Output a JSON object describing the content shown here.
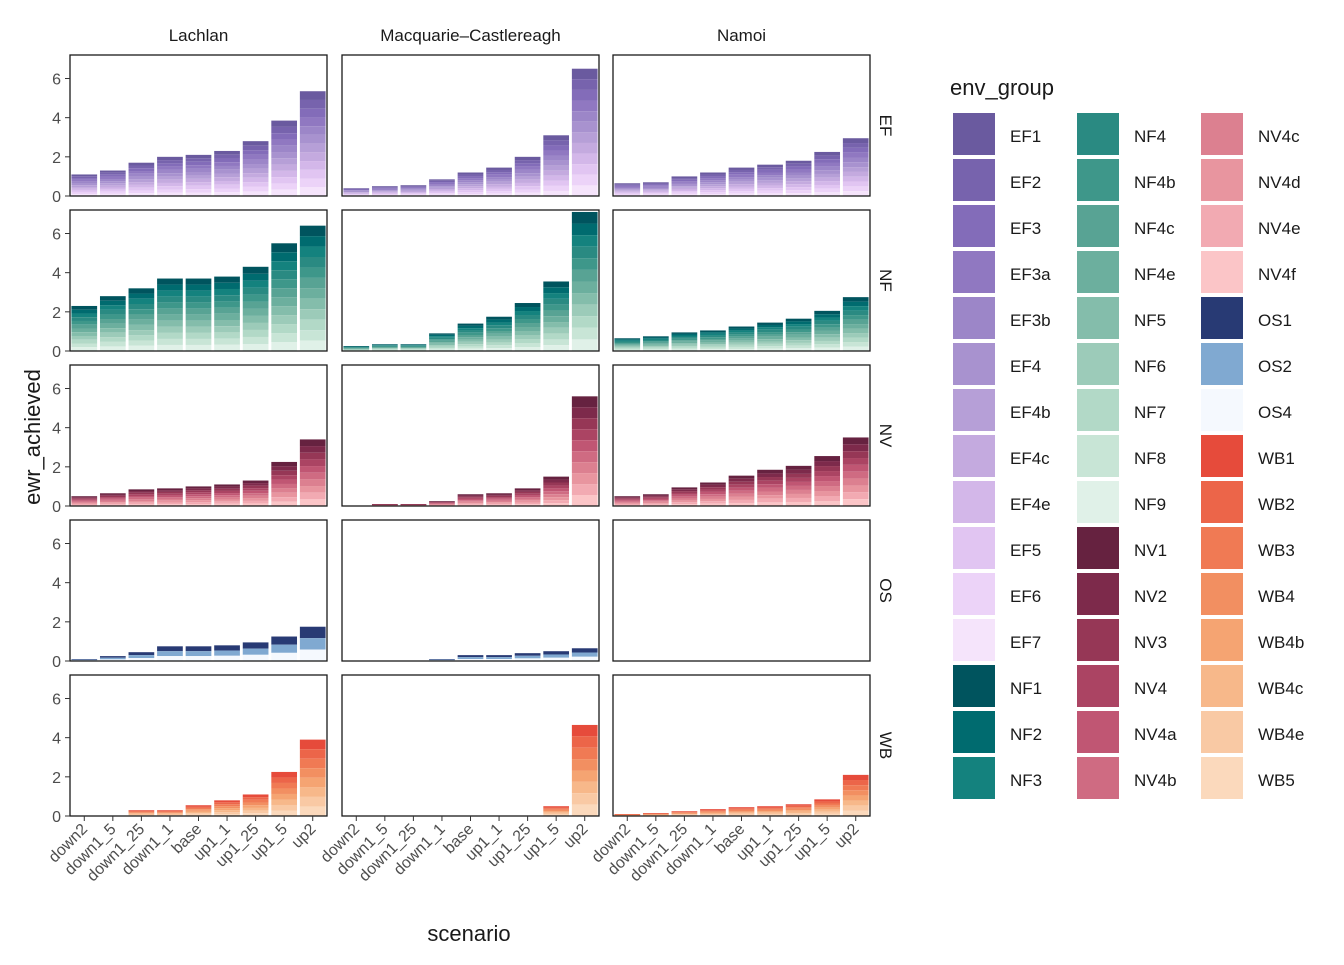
{
  "chart_data": {
    "type": "bar",
    "stacked": true,
    "faceted": true,
    "xlabel": "scenario",
    "ylabel": "ewr_achieved",
    "ylim": [
      0,
      7.2
    ],
    "yticks": [
      0,
      2,
      4,
      6
    ],
    "grid": false,
    "legend_position": "right",
    "legend_title": "env_group",
    "columns": [
      "Lachlan",
      "Macquarie–Castlereagh",
      "Namoi"
    ],
    "rows": [
      "EF",
      "NF",
      "NV",
      "OS",
      "WB"
    ],
    "categories": [
      "down2",
      "down1_5",
      "down1_25",
      "down1_1",
      "base",
      "up1_1",
      "up1_25",
      "up1_5",
      "up2"
    ],
    "groups": {
      "EF": [
        "EF1",
        "EF2",
        "EF3",
        "EF3a",
        "EF3b",
        "EF4",
        "EF4b",
        "EF4c",
        "EF4e",
        "EF5",
        "EF6",
        "EF7"
      ],
      "NF": [
        "NF1",
        "NF2",
        "NF3",
        "NF4",
        "NF4b",
        "NF4c",
        "NF4e",
        "NF5",
        "NF6",
        "NF7",
        "NF8",
        "NF9"
      ],
      "NV": [
        "NV1",
        "NV2",
        "NV3",
        "NV4",
        "NV4a",
        "NV4b",
        "NV4c",
        "NV4d",
        "NV4e",
        "NV4f"
      ],
      "OS": [
        "OS1",
        "OS2",
        "OS4"
      ],
      "WB": [
        "WB1",
        "WB2",
        "WB3",
        "WB4",
        "WB4b",
        "WB4c",
        "WB4e",
        "WB5"
      ]
    },
    "colors": {
      "EF1": "#6a5a9f",
      "EF2": "#7763ad",
      "EF3": "#836cb9",
      "EF3a": "#9078c1",
      "EF3b": "#9c86c8",
      "EF4": "#a892cf",
      "EF4b": "#b69fd7",
      "EF4c": "#c4aadf",
      "EF4e": "#d3b7e9",
      "EF5": "#e1c5f2",
      "EF6": "#ecd3f8",
      "EF7": "#f5e4fb",
      "NF1": "#00545e",
      "NF2": "#006b6f",
      "NF3": "#14827e",
      "NF4": "#2a8a82",
      "NF4b": "#3e978a",
      "NF4c": "#58a394",
      "NF4e": "#6caf9e",
      "NF5": "#84bdab",
      "NF6": "#9ccbb9",
      "NF7": "#b2d9c7",
      "NF8": "#c8e5d6",
      "NF9": "#e0f1e8",
      "NV1": "#662240",
      "NV2": "#7d2a4b",
      "NV3": "#963756",
      "NV4": "#ab4463",
      "NV4a": "#c05673",
      "NV4b": "#cf6b82",
      "NV4c": "#dc8090",
      "NV4d": "#e8959f",
      "NV4e": "#f2aab2",
      "NV4f": "#fbc5c7",
      "OS1": "#283a74",
      "OS2": "#80a9d1",
      "OS4": "#f5f9fe",
      "WB1": "#e64b3b",
      "WB2": "#ec6549",
      "WB3": "#f07a54",
      "WB4": "#f28f61",
      "WB4b": "#f5a472",
      "WB4c": "#f7b88a",
      "WB4e": "#f9c9a4",
      "WB5": "#fbd9bc"
    },
    "totals": {
      "Lachlan": {
        "EF": [
          1.1,
          1.3,
          1.7,
          2.0,
          2.1,
          2.3,
          2.8,
          3.85,
          5.35
        ],
        "NF": [
          2.3,
          2.8,
          3.2,
          3.7,
          3.7,
          3.8,
          4.3,
          5.5,
          6.4
        ],
        "NV": [
          0.5,
          0.65,
          0.85,
          0.9,
          1.0,
          1.1,
          1.3,
          2.25,
          3.4
        ],
        "OS": [
          0.1,
          0.25,
          0.45,
          0.75,
          0.75,
          0.8,
          0.95,
          1.25,
          1.75
        ],
        "WB": [
          0.0,
          0.0,
          0.3,
          0.3,
          0.55,
          0.8,
          1.1,
          2.25,
          3.9
        ]
      },
      "Macquarie–Castlereagh": {
        "EF": [
          0.4,
          0.5,
          0.55,
          0.85,
          1.2,
          1.45,
          2.0,
          3.1,
          6.5
        ],
        "NF": [
          0.25,
          0.35,
          0.35,
          0.9,
          1.4,
          1.75,
          2.45,
          3.55,
          7.1
        ],
        "NV": [
          0.0,
          0.1,
          0.1,
          0.25,
          0.6,
          0.65,
          0.9,
          1.5,
          5.6
        ],
        "OS": [
          0.0,
          0.0,
          0.0,
          0.1,
          0.3,
          0.3,
          0.4,
          0.5,
          0.65
        ],
        "WB": [
          0.0,
          0.0,
          0.0,
          0.0,
          0.0,
          0.0,
          0.0,
          0.5,
          4.65
        ]
      },
      "Namoi": {
        "EF": [
          0.65,
          0.7,
          1.0,
          1.2,
          1.45,
          1.6,
          1.8,
          2.25,
          2.95
        ],
        "NF": [
          0.65,
          0.75,
          0.95,
          1.05,
          1.25,
          1.45,
          1.65,
          2.05,
          2.75
        ],
        "NV": [
          0.5,
          0.6,
          0.95,
          1.2,
          1.55,
          1.85,
          2.05,
          2.55,
          3.5
        ],
        "OS": [
          0,
          0,
          0,
          0,
          0,
          0,
          0,
          0,
          0
        ],
        "WB": [
          0.1,
          0.15,
          0.25,
          0.35,
          0.45,
          0.5,
          0.6,
          0.85,
          2.1
        ]
      }
    }
  }
}
